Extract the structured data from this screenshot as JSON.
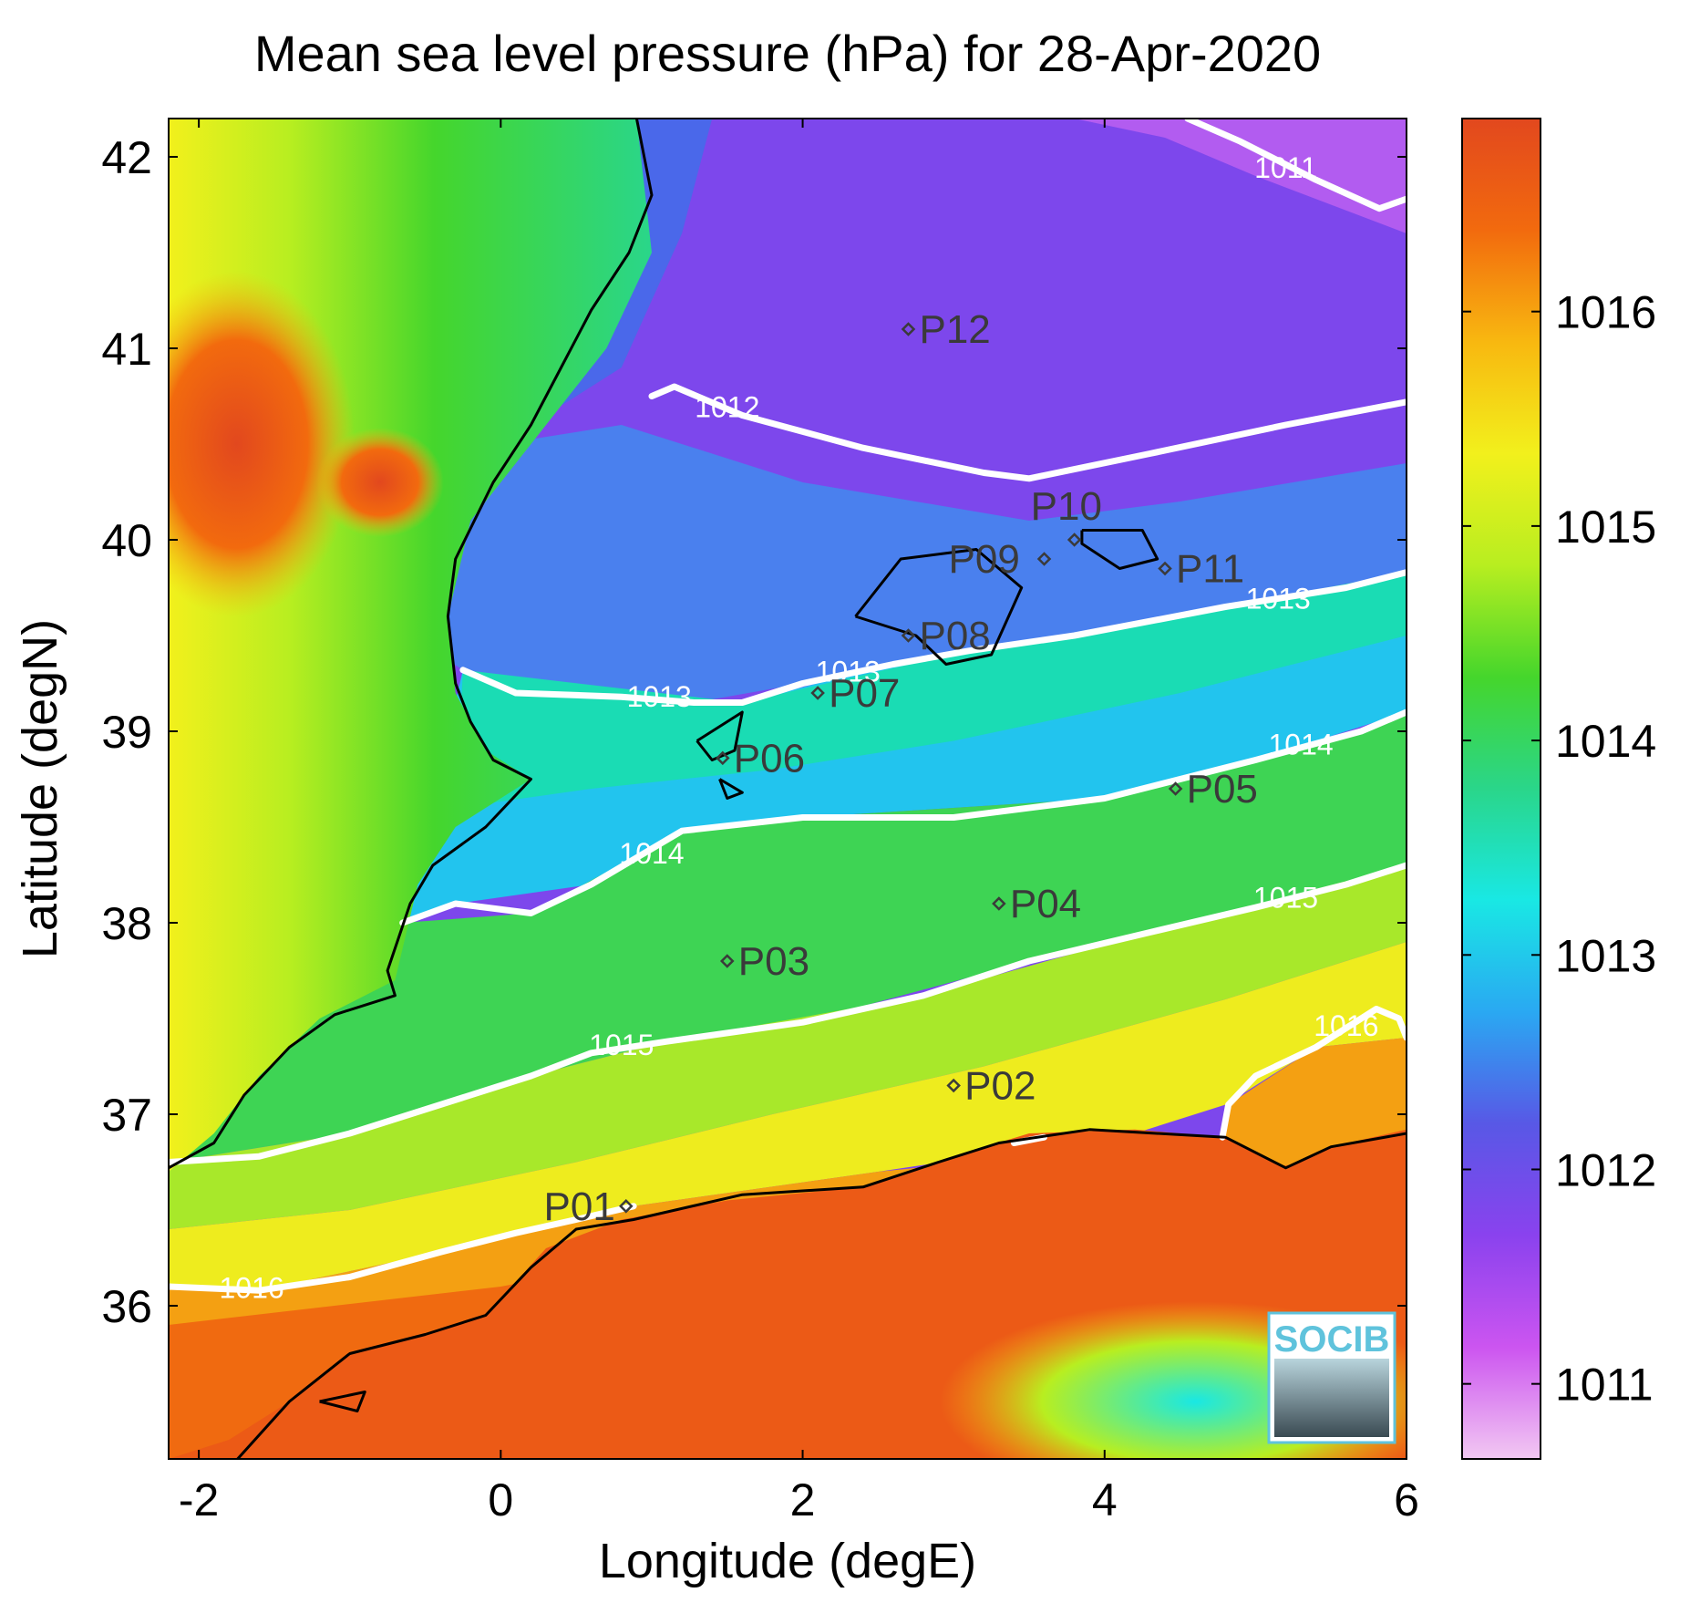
{
  "title": "Mean sea level pressure (hPa) for 28-Apr-2020",
  "x_axis": {
    "label": "Longitude (degE)",
    "range": [
      -2.2,
      6.0
    ],
    "ticks": [
      {
        "value": -2,
        "label": "-2"
      },
      {
        "value": 0,
        "label": "0"
      },
      {
        "value": 2,
        "label": "2"
      },
      {
        "value": 4,
        "label": "4"
      },
      {
        "value": 6,
        "label": "6"
      }
    ]
  },
  "y_axis": {
    "label": "Latitude (degN)",
    "range": [
      35.2,
      42.2
    ],
    "ticks": [
      {
        "value": 36,
        "label": "36"
      },
      {
        "value": 37,
        "label": "37"
      },
      {
        "value": 38,
        "label": "38"
      },
      {
        "value": 39,
        "label": "39"
      },
      {
        "value": 40,
        "label": "40"
      },
      {
        "value": 41,
        "label": "41"
      },
      {
        "value": 42,
        "label": "42"
      }
    ]
  },
  "colorbar": {
    "range": [
      1010.65,
      1016.9
    ],
    "ticks": [
      {
        "value": 1011,
        "label": "1011"
      },
      {
        "value": 1012,
        "label": "1012"
      },
      {
        "value": 1013,
        "label": "1013"
      },
      {
        "value": 1014,
        "label": "1014"
      },
      {
        "value": 1015,
        "label": "1015"
      },
      {
        "value": 1016,
        "label": "1016"
      }
    ],
    "colors": [
      "#f2c8f2",
      "#cc55f0",
      "#8a42ee",
      "#5858e6",
      "#2aa8f2",
      "#19e8e4",
      "#2ad68a",
      "#45d62c",
      "#b8ee20",
      "#f2f01c",
      "#f8b810",
      "#f26a0e",
      "#e2481e"
    ]
  },
  "stations": [
    {
      "id": "P01",
      "lon": 0.83,
      "lat": 36.52
    },
    {
      "id": "P02",
      "lon": 3.0,
      "lat": 37.15
    },
    {
      "id": "P03",
      "lon": 1.5,
      "lat": 37.8
    },
    {
      "id": "P04",
      "lon": 3.3,
      "lat": 38.1
    },
    {
      "id": "P05",
      "lon": 4.47,
      "lat": 38.7
    },
    {
      "id": "P06",
      "lon": 1.47,
      "lat": 38.86
    },
    {
      "id": "P07",
      "lon": 2.1,
      "lat": 39.2
    },
    {
      "id": "P08",
      "lon": 2.7,
      "lat": 39.5
    },
    {
      "id": "P09",
      "lon": 3.6,
      "lat": 39.9
    },
    {
      "id": "P10",
      "lon": 3.8,
      "lat": 40.0
    },
    {
      "id": "P11",
      "lon": 4.4,
      "lat": 39.85
    },
    {
      "id": "P12",
      "lon": 2.7,
      "lat": 41.1
    }
  ],
  "contours": [
    {
      "level": 1011,
      "label": "1011",
      "points": [
        [
          4.55,
          42.2
        ],
        [
          4.9,
          42.08
        ],
        [
          5.4,
          41.88
        ],
        [
          5.82,
          41.73
        ],
        [
          6.0,
          41.78
        ]
      ],
      "labels_at": [
        [
          5.2,
          41.93
        ]
      ]
    },
    {
      "level": 1012,
      "label": "1012",
      "points": [
        [
          1.0,
          40.75
        ],
        [
          1.15,
          40.8
        ],
        [
          1.6,
          40.65
        ],
        [
          2.4,
          40.48
        ],
        [
          3.2,
          40.35
        ],
        [
          3.5,
          40.32
        ],
        [
          4.3,
          40.45
        ],
        [
          5.2,
          40.6
        ],
        [
          6.0,
          40.72
        ]
      ],
      "labels_at": [
        [
          1.5,
          40.68
        ]
      ]
    },
    {
      "level": 1013,
      "label": "1013",
      "points": [
        [
          -0.25,
          39.32
        ],
        [
          0.1,
          39.2
        ],
        [
          0.8,
          39.18
        ],
        [
          1.28,
          39.15
        ],
        [
          1.6,
          39.15
        ],
        [
          2.0,
          39.25
        ],
        [
          2.6,
          39.35
        ],
        [
          3.1,
          39.42
        ],
        [
          3.8,
          39.5
        ],
        [
          4.8,
          39.65
        ],
        [
          5.6,
          39.75
        ],
        [
          6.0,
          39.83
        ]
      ],
      "labels_at": [
        [
          1.05,
          39.17
        ],
        [
          2.3,
          39.3
        ],
        [
          5.15,
          39.68
        ]
      ]
    },
    {
      "level": 1014,
      "label": "1014",
      "points": [
        [
          -0.65,
          38.0
        ],
        [
          -0.3,
          38.1
        ],
        [
          0.2,
          38.05
        ],
        [
          0.6,
          38.2
        ],
        [
          1.2,
          38.48
        ],
        [
          2.0,
          38.55
        ],
        [
          3.0,
          38.55
        ],
        [
          4.0,
          38.65
        ],
        [
          5.0,
          38.85
        ],
        [
          5.7,
          39.0
        ],
        [
          6.0,
          39.1
        ]
      ],
      "labels_at": [
        [
          1.0,
          38.35
        ],
        [
          5.3,
          38.92
        ]
      ]
    },
    {
      "level": 1015,
      "label": "1015",
      "points": [
        [
          -2.2,
          36.75
        ],
        [
          -1.6,
          36.78
        ],
        [
          -1.0,
          36.9
        ],
        [
          -0.4,
          37.05
        ],
        [
          0.2,
          37.2
        ],
        [
          0.6,
          37.32
        ],
        [
          1.1,
          37.38
        ],
        [
          2.0,
          37.48
        ],
        [
          2.8,
          37.62
        ],
        [
          3.5,
          37.8
        ],
        [
          4.3,
          37.95
        ],
        [
          5.0,
          38.08
        ],
        [
          5.6,
          38.2
        ],
        [
          6.0,
          38.3
        ]
      ],
      "labels_at": [
        [
          0.8,
          37.35
        ],
        [
          5.2,
          38.12
        ]
      ]
    },
    {
      "level": 1016,
      "label": "1016",
      "points": [
        [
          -2.2,
          36.1
        ],
        [
          -1.6,
          36.08
        ],
        [
          -1.0,
          36.15
        ],
        [
          -0.4,
          36.28
        ],
        [
          0.1,
          36.38
        ],
        [
          0.5,
          36.45
        ],
        [
          0.88,
          36.52
        ]
      ],
      "labels_at": [
        [
          -1.65,
          36.08
        ]
      ],
      "extra_segments": [
        [
          [
            3.4,
            36.85
          ],
          [
            3.6,
            36.88
          ]
        ],
        [
          [
            4.78,
            36.88
          ],
          [
            4.82,
            37.05
          ],
          [
            5.0,
            37.2
          ],
          [
            5.4,
            37.35
          ],
          [
            5.8,
            37.55
          ],
          [
            5.95,
            37.5
          ],
          [
            6.0,
            37.4
          ]
        ]
      ],
      "extra_labels_at": [
        [
          5.6,
          37.45
        ]
      ]
    }
  ],
  "logo": {
    "text": "SOCIB"
  }
}
